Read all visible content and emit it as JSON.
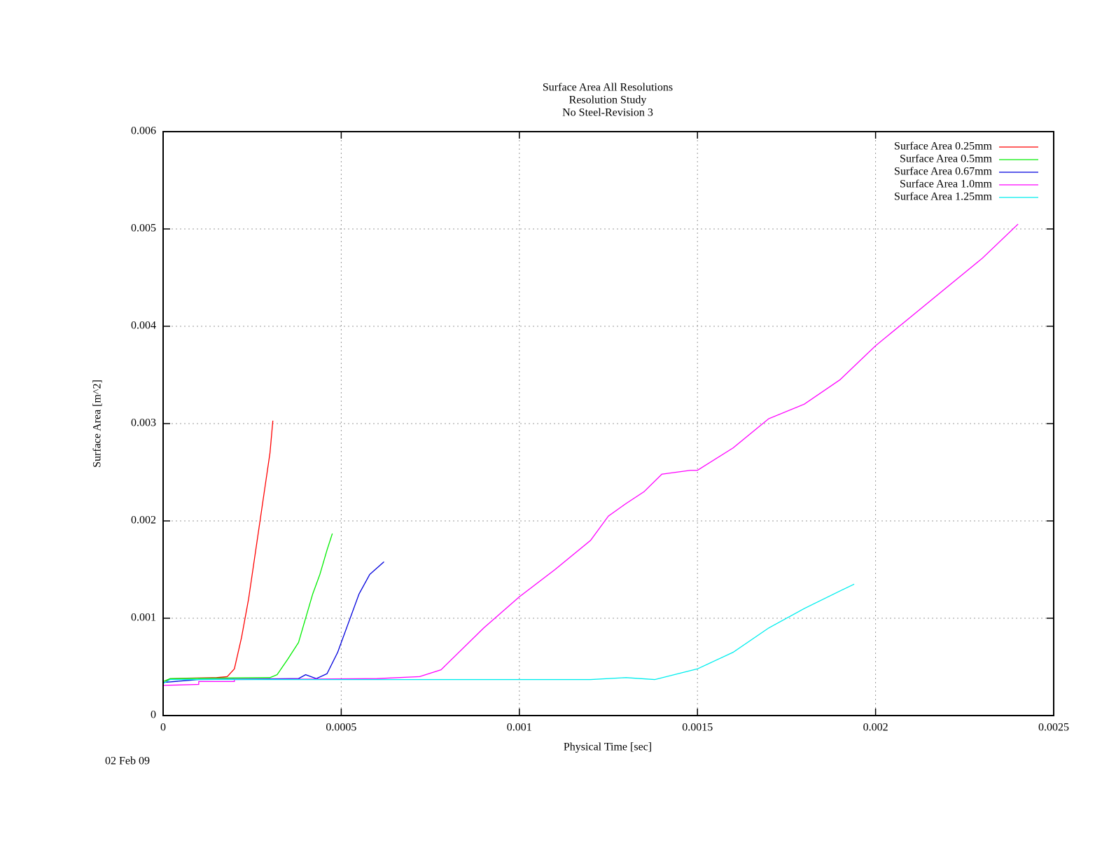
{
  "chart_data": {
    "type": "line",
    "title": [
      "Surface Area All Resolutions",
      "Resolution Study",
      "No Steel-Revision 3"
    ],
    "date": "02 Feb 09",
    "xlabel": "Physical Time [sec]",
    "xlabel_color": "#00dd00",
    "ylabel": "Surface Area [m^2]",
    "ylabel_color": "#ff0000",
    "xlim": [
      0,
      0.0025
    ],
    "xticks": [
      0,
      0.0005,
      0.001,
      0.0015,
      0.002,
      0.0025
    ],
    "ylim": [
      0,
      0.006
    ],
    "yticks": [
      0,
      0.001,
      0.002,
      0.003,
      0.004,
      0.005,
      0.006
    ],
    "grid": true,
    "legend": "top-right",
    "series": [
      {
        "name": "Surface Area 0.25mm",
        "color": "#ff0000",
        "x": [
          0,
          2e-05,
          0.00015,
          0.00018,
          0.0002,
          0.00022,
          0.00024,
          0.00026,
          0.00028,
          0.0003,
          0.000308
        ],
        "values": [
          0.00033,
          0.00038,
          0.00039,
          0.0004,
          0.00048,
          0.0008,
          0.0012,
          0.0017,
          0.0022,
          0.0027,
          0.00303
        ]
      },
      {
        "name": "Surface Area 0.5mm",
        "color": "#00ee00",
        "x": [
          0,
          2e-05,
          0.0003,
          0.00032,
          0.00035,
          0.00038,
          0.0004,
          0.00042,
          0.00044,
          0.00046,
          0.000475
        ],
        "values": [
          0.00035,
          0.00038,
          0.00039,
          0.00042,
          0.00058,
          0.00075,
          0.001,
          0.00125,
          0.00145,
          0.0017,
          0.00187
        ]
      },
      {
        "name": "Surface Area 0.67mm",
        "color": "#0000dd",
        "x": [
          0,
          0.0001,
          0.00038,
          0.0004,
          0.00043,
          0.00046,
          0.00049,
          0.00052,
          0.00055,
          0.00058,
          0.00062
        ],
        "values": [
          0.00034,
          0.00037,
          0.00038,
          0.00042,
          0.00038,
          0.00043,
          0.00065,
          0.00095,
          0.00125,
          0.00145,
          0.00158
        ]
      },
      {
        "name": "Surface Area 1.0mm",
        "color": "#ff00ff",
        "x": [
          0,
          0.0001,
          0.0001,
          0.0002,
          0.0002,
          0.0006,
          0.00072,
          0.00078,
          0.0009,
          0.001,
          0.0011,
          0.0012,
          0.00125,
          0.0013,
          0.00135,
          0.0014,
          0.00148,
          0.0015,
          0.0016,
          0.00165,
          0.0017,
          0.0018,
          0.0019,
          0.002,
          0.0021,
          0.0022,
          0.0023,
          0.0024
        ],
        "values": [
          0.00031,
          0.00032,
          0.00035,
          0.00035,
          0.00037,
          0.00038,
          0.0004,
          0.00047,
          0.0009,
          0.00122,
          0.0015,
          0.0018,
          0.00205,
          0.00218,
          0.0023,
          0.00248,
          0.00252,
          0.00252,
          0.00275,
          0.0029,
          0.00305,
          0.0032,
          0.00345,
          0.0038,
          0.0041,
          0.0044,
          0.0047,
          0.00505
        ]
      },
      {
        "name": "Surface Area 1.25mm",
        "color": "#00eeee",
        "x": [
          0,
          2e-05,
          0.0012,
          0.0013,
          0.00138,
          0.0015,
          0.0016,
          0.0017,
          0.0018,
          0.0019,
          0.00194
        ],
        "values": [
          0.00033,
          0.00037,
          0.00037,
          0.00039,
          0.00037,
          0.00048,
          0.00065,
          0.0009,
          0.0011,
          0.00128,
          0.00135
        ]
      }
    ]
  }
}
